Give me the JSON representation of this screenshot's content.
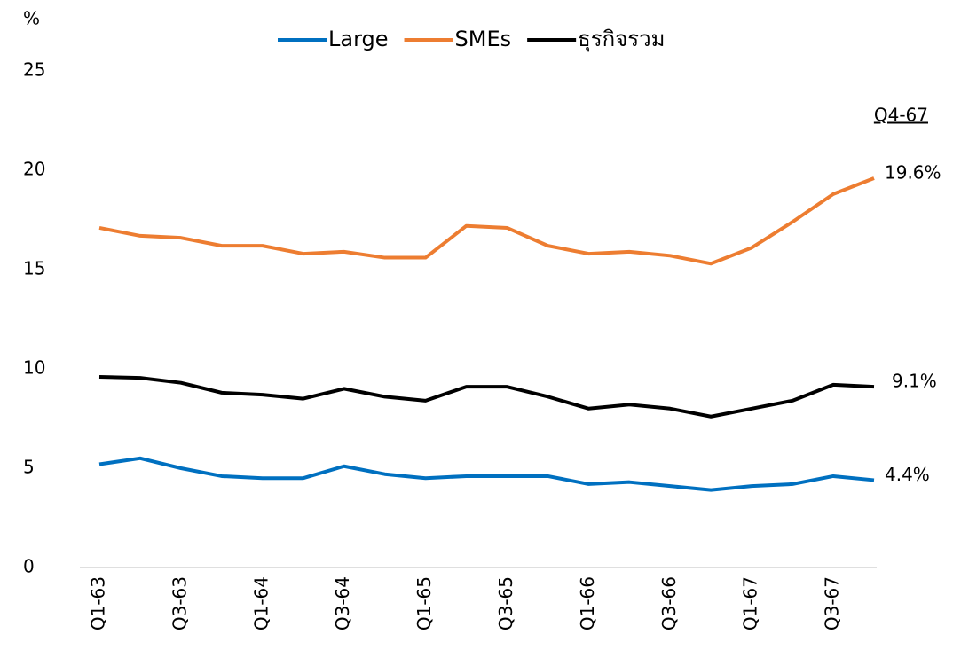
{
  "chart_data": {
    "type": "line",
    "y_label": "%",
    "annotation": "Q4-67",
    "categories": [
      "Q1-63",
      null,
      "Q3-63",
      null,
      "Q1-64",
      null,
      "Q3-64",
      null,
      "Q1-65",
      null,
      "Q3-65",
      null,
      "Q1-66",
      null,
      "Q3-66",
      null,
      "Q1-67",
      null,
      "Q3-67",
      null
    ],
    "series": [
      {
        "name": "Large",
        "color": "#0070c0",
        "values": [
          5.2,
          5.5,
          5.0,
          4.6,
          4.5,
          4.5,
          5.1,
          4.7,
          4.5,
          4.6,
          4.6,
          4.6,
          4.2,
          4.3,
          4.1,
          3.9,
          4.1,
          4.2,
          4.6,
          4.4
        ],
        "value_labels": [
          null,
          null,
          null,
          null,
          null,
          null,
          null,
          null,
          null,
          null,
          null,
          null,
          null,
          null,
          null,
          null,
          null,
          null,
          null,
          "4.4%"
        ]
      },
      {
        "name": "SMEs",
        "color": "#ed7d31",
        "values": [
          17.1,
          16.7,
          16.6,
          16.2,
          16.2,
          15.8,
          15.9,
          15.6,
          15.6,
          17.2,
          17.1,
          16.2,
          15.8,
          15.9,
          15.7,
          15.3,
          16.1,
          17.4,
          18.8,
          19.6
        ],
        "value_labels": [
          null,
          null,
          null,
          null,
          null,
          null,
          null,
          null,
          null,
          null,
          null,
          null,
          null,
          null,
          null,
          null,
          null,
          null,
          null,
          "19.6%"
        ]
      },
      {
        "name": "ธุรกิจรวม",
        "color": "#000000",
        "values": [
          9.6,
          9.55,
          9.3,
          8.8,
          8.7,
          8.5,
          9.0,
          8.6,
          8.4,
          9.1,
          9.1,
          8.6,
          8.0,
          8.2,
          8.0,
          7.6,
          8.0,
          8.4,
          9.2,
          9.1
        ],
        "value_labels": [
          null,
          null,
          null,
          null,
          null,
          null,
          null,
          null,
          null,
          null,
          null,
          null,
          null,
          null,
          null,
          null,
          null,
          null,
          null,
          "9.1%"
        ]
      }
    ],
    "ylim": [
      0,
      25
    ],
    "yticks": [
      0,
      5,
      10,
      15,
      20,
      25
    ],
    "grid": false,
    "legend": "top"
  }
}
